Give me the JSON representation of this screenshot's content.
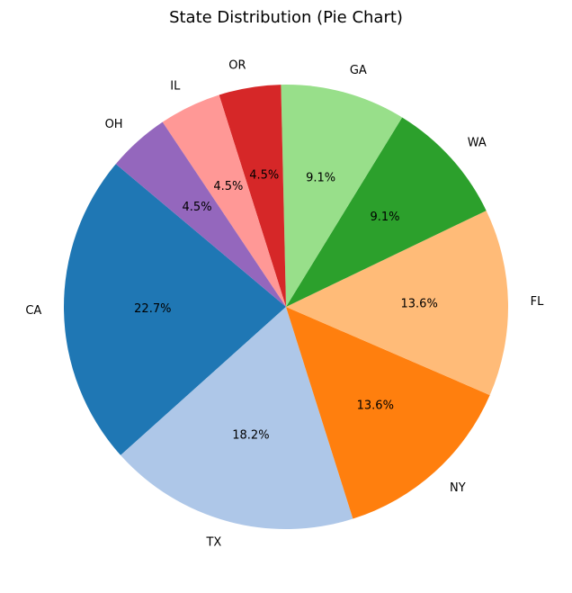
{
  "chart_data": {
    "type": "pie",
    "title": "State Distribution (Pie Chart)",
    "start_angle_deg": 140,
    "direction": "counterclockwise",
    "slices": [
      {
        "label": "CA",
        "value": 22.7,
        "pct_text": "22.7%",
        "color": "#1f77b4"
      },
      {
        "label": "TX",
        "value": 18.2,
        "pct_text": "18.2%",
        "color": "#aec7e8"
      },
      {
        "label": "NY",
        "value": 13.6,
        "pct_text": "13.6%",
        "color": "#ff7f0e"
      },
      {
        "label": "FL",
        "value": 13.6,
        "pct_text": "13.6%",
        "color": "#ffbb78"
      },
      {
        "label": "WA",
        "value": 9.1,
        "pct_text": "9.1%",
        "color": "#2ca02c"
      },
      {
        "label": "GA",
        "value": 9.1,
        "pct_text": "9.1%",
        "color": "#98df8a"
      },
      {
        "label": "OR",
        "value": 4.5,
        "pct_text": "4.5%",
        "color": "#d62728"
      },
      {
        "label": "IL",
        "value": 4.5,
        "pct_text": "4.5%",
        "color": "#ff9896"
      },
      {
        "label": "OH",
        "value": 4.5,
        "pct_text": "4.5%",
        "color": "#9467bd"
      }
    ]
  }
}
